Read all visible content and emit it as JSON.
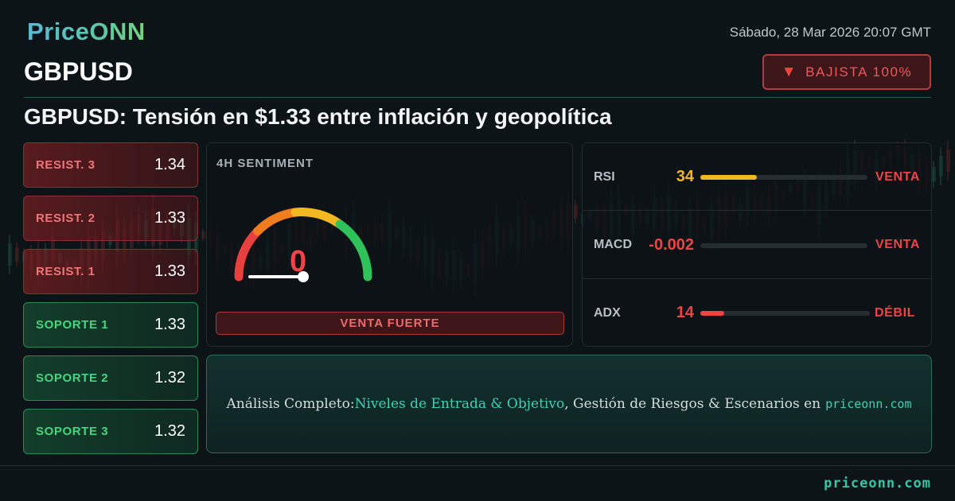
{
  "brand": {
    "logo": "PriceONN"
  },
  "header": {
    "symbol": "GBPUSD",
    "datetime": "Sábado, 28 Mar 2026 20:07 GMT",
    "trend_badge": {
      "icon": "down-triangle-icon",
      "label": "BAJISTA 100%"
    }
  },
  "headline": "GBPUSD: Tensión en $1.33 entre inflación y geopolítica",
  "levels": [
    {
      "label": "RESIST. 3",
      "value": "1.34",
      "kind": "resistance"
    },
    {
      "label": "RESIST. 2",
      "value": "1.33",
      "kind": "resistance"
    },
    {
      "label": "RESIST. 1",
      "value": "1.33",
      "kind": "resistance"
    },
    {
      "label": "SOPORTE 1",
      "value": "1.33",
      "kind": "support"
    },
    {
      "label": "SOPORTE 2",
      "value": "1.32",
      "kind": "support"
    },
    {
      "label": "SOPORTE 3",
      "value": "1.32",
      "kind": "support"
    }
  ],
  "sentiment": {
    "title": "4H SENTIMENT",
    "value": "0",
    "gauge_level": 0,
    "verdict": "VENTA FUERTE"
  },
  "indicators": [
    {
      "name": "RSI",
      "value": "34",
      "level": 0.34,
      "signal": "VENTA",
      "value_color": "#f2b822",
      "bar_color": "#f2b822",
      "signal_color": "#ee4446"
    },
    {
      "name": "MACD",
      "value": "-0.002",
      "level": 0.0,
      "signal": "VENTA",
      "value_color": "#ee4446",
      "bar_color": "#ee4446",
      "signal_color": "#ee4446"
    },
    {
      "name": "ADX",
      "value": "14",
      "level": 0.14,
      "signal": "DÉBIL",
      "value_color": "#ee4446",
      "bar_color": "#ee4446",
      "signal_color": "#ee4446"
    }
  ],
  "cta": {
    "prefix": "Análisis Completo: ",
    "highlight": "Niveles de Entrada & Objetivo",
    "middle": ", Gestión de Riesgos & Escenarios en ",
    "site": "priceonn.com"
  },
  "footer": {
    "site": "priceonn.com"
  },
  "colors": {
    "background": "#0d1418",
    "bearish": "#ee4446",
    "bullish": "#46d67f",
    "accent": "#33c7a5"
  }
}
